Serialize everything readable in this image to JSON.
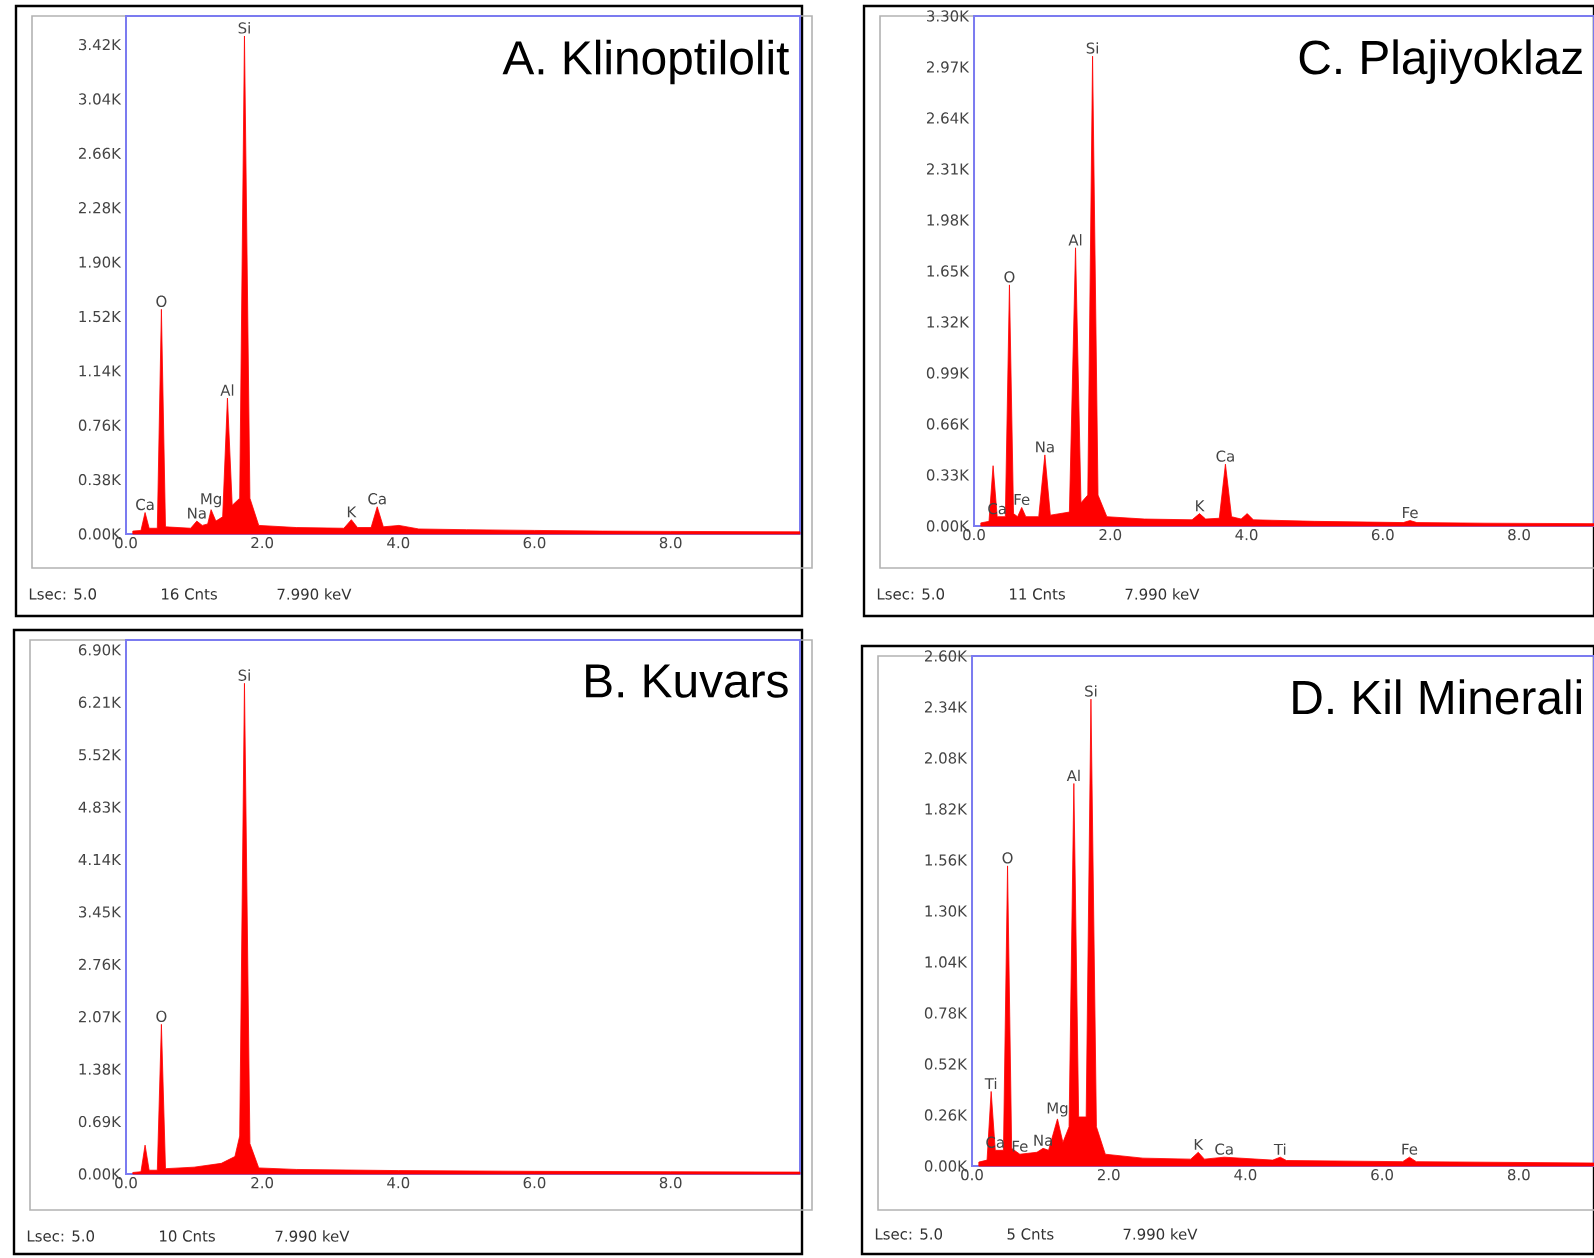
{
  "chart_data": [
    {
      "type": "area",
      "title": "A.  Klinoptilolit",
      "series": [
        {
          "color": "#ff0000",
          "x": [
            0.1,
            0.22,
            0.28,
            0.34,
            0.46,
            0.52,
            0.58,
            0.95,
            1.04,
            1.12,
            1.2,
            1.25,
            1.32,
            1.42,
            1.49,
            1.56,
            1.67,
            1.74,
            1.82,
            1.95,
            2.5,
            3.2,
            3.31,
            3.4,
            3.6,
            3.69,
            3.78,
            4.01,
            4.3,
            5.0,
            6.0,
            7.0,
            8.0,
            9.9
          ],
          "values": [
            20,
            25,
            150,
            40,
            40,
            1570,
            50,
            40,
            90,
            60,
            70,
            170,
            90,
            120,
            950,
            200,
            250,
            3480,
            250,
            60,
            45,
            40,
            100,
            45,
            45,
            190,
            50,
            60,
            35,
            30,
            25,
            20,
            18,
            15
          ]
        }
      ],
      "xlim": [
        0,
        9.9
      ],
      "xticks": [
        {
          "value": 0,
          "label": "0.0"
        },
        {
          "value": 2,
          "label": "2.0"
        },
        {
          "value": 4,
          "label": "4.0"
        },
        {
          "value": 6,
          "label": "6.0"
        },
        {
          "value": 8,
          "label": "8.0"
        }
      ],
      "ylim": [
        0,
        3620
      ],
      "yticks": [
        {
          "value": 0,
          "label": "0.00K"
        },
        {
          "value": 380,
          "label": "0.38K"
        },
        {
          "value": 760,
          "label": "0.76K"
        },
        {
          "value": 1140,
          "label": "1.14K"
        },
        {
          "value": 1520,
          "label": "1.52K"
        },
        {
          "value": 1900,
          "label": "1.90K"
        },
        {
          "value": 2280,
          "label": "2.28K"
        },
        {
          "value": 2660,
          "label": "2.66K"
        },
        {
          "value": 3040,
          "label": "3.04K"
        },
        {
          "value": 3420,
          "label": "3.42K"
        }
      ],
      "annotations": [
        {
          "text": "Si",
          "x": 1.74,
          "y": 3480
        },
        {
          "text": "O",
          "x": 0.52,
          "y": 1570
        },
        {
          "text": "Al",
          "x": 1.49,
          "y": 950
        },
        {
          "text": "Mg",
          "x": 1.25,
          "y": 170
        },
        {
          "text": "Na",
          "x": 1.04,
          "y": 90
        },
        {
          "text": "Ca",
          "x": 0.28,
          "y": 150
        },
        {
          "text": "K",
          "x": 3.31,
          "y": 100
        },
        {
          "text": "Ca",
          "x": 3.69,
          "y": 190
        },
        "Lsec: 5.0",
        "16 Cnts",
        "7.990 keV"
      ]
    },
    {
      "type": "area",
      "title": "C. Plajiyoklaz",
      "series": [
        {
          "color": "#ff0000",
          "x": [
            0.1,
            0.22,
            0.28,
            0.34,
            0.46,
            0.52,
            0.58,
            0.64,
            0.7,
            0.76,
            0.95,
            1.04,
            1.12,
            1.4,
            1.49,
            1.57,
            1.67,
            1.74,
            1.82,
            1.95,
            2.5,
            3.2,
            3.31,
            3.4,
            3.6,
            3.69,
            3.78,
            3.92,
            4.01,
            4.1,
            5.0,
            6.3,
            6.4,
            6.5,
            7.5,
            9.1
          ],
          "values": [
            20,
            30,
            390,
            60,
            60,
            1560,
            80,
            60,
            120,
            60,
            60,
            460,
            70,
            90,
            1800,
            150,
            200,
            3040,
            200,
            60,
            45,
            40,
            80,
            45,
            50,
            400,
            60,
            45,
            80,
            40,
            30,
            22,
            35,
            22,
            18,
            15
          ]
        }
      ],
      "xlim": [
        0,
        9.1
      ],
      "xticks": [
        {
          "value": 0,
          "label": "0.0"
        },
        {
          "value": 2,
          "label": "2.0"
        },
        {
          "value": 4,
          "label": "4.0"
        },
        {
          "value": 6,
          "label": "6.0"
        },
        {
          "value": 8,
          "label": "8.0"
        }
      ],
      "ylim": [
        0,
        3300
      ],
      "yticks": [
        {
          "value": 0,
          "label": "0.00K"
        },
        {
          "value": 330,
          "label": "0.33K"
        },
        {
          "value": 660,
          "label": "0.66K"
        },
        {
          "value": 990,
          "label": "0.99K"
        },
        {
          "value": 1320,
          "label": "1.32K"
        },
        {
          "value": 1650,
          "label": "1.65K"
        },
        {
          "value": 1980,
          "label": "1.98K"
        },
        {
          "value": 2310,
          "label": "2.31K"
        },
        {
          "value": 2640,
          "label": "2.64K"
        },
        {
          "value": 2970,
          "label": "2.97K"
        },
        {
          "value": 3300,
          "label": "3.30K"
        }
      ],
      "annotations": [
        {
          "text": "Si",
          "x": 1.74,
          "y": 3040
        },
        {
          "text": "O",
          "x": 0.52,
          "y": 1560
        },
        {
          "text": "Al",
          "x": 1.49,
          "y": 1800
        },
        {
          "text": "Na",
          "x": 1.04,
          "y": 460
        },
        {
          "text": "Ca",
          "x": 0.34,
          "y": 60
        },
        {
          "text": "Fe",
          "x": 0.7,
          "y": 120
        },
        {
          "text": "K",
          "x": 3.31,
          "y": 80
        },
        {
          "text": "Ca",
          "x": 3.69,
          "y": 400
        },
        {
          "text": "Fe",
          "x": 6.4,
          "y": 35
        },
        "Lsec: 5.0",
        "11 Cnts",
        "7.990 keV"
      ]
    },
    {
      "type": "area",
      "title": "B. Kuvars",
      "series": [
        {
          "color": "#ff0000",
          "x": [
            0.1,
            0.22,
            0.28,
            0.34,
            0.46,
            0.52,
            0.58,
            1.0,
            1.4,
            1.6,
            1.67,
            1.74,
            1.82,
            1.95,
            2.5,
            4.0,
            6.0,
            8.0,
            9.9
          ],
          "values": [
            20,
            30,
            380,
            50,
            50,
            1970,
            70,
            90,
            140,
            230,
            500,
            6460,
            400,
            80,
            60,
            45,
            35,
            30,
            25
          ]
        }
      ],
      "xlim": [
        0,
        9.9
      ],
      "xticks": [
        {
          "value": 0,
          "label": "0.0"
        },
        {
          "value": 2,
          "label": "2.0"
        },
        {
          "value": 4,
          "label": "4.0"
        },
        {
          "value": 6,
          "label": "6.0"
        },
        {
          "value": 8,
          "label": "8.0"
        }
      ],
      "ylim": [
        0,
        7030
      ],
      "yticks": [
        {
          "value": 0,
          "label": "0.00K"
        },
        {
          "value": 690,
          "label": "0.69K"
        },
        {
          "value": 1380,
          "label": "1.38K"
        },
        {
          "value": 2070,
          "label": "2.07K"
        },
        {
          "value": 2760,
          "label": "2.76K"
        },
        {
          "value": 3450,
          "label": "3.45K"
        },
        {
          "value": 4140,
          "label": "4.14K"
        },
        {
          "value": 4830,
          "label": "4.83K"
        },
        {
          "value": 5520,
          "label": "5.52K"
        },
        {
          "value": 6210,
          "label": "6.21K"
        },
        {
          "value": 6900,
          "label": "6.90K"
        }
      ],
      "annotations": [
        {
          "text": "Si",
          "x": 1.74,
          "y": 6460
        },
        {
          "text": "O",
          "x": 0.52,
          "y": 1970
        },
        "Lsec: 5.0",
        "10 Cnts",
        "7.990 keV"
      ]
    },
    {
      "type": "area",
      "title": "D. Kil Minerali",
      "series": [
        {
          "color": "#ff0000",
          "x": [
            0.1,
            0.22,
            0.28,
            0.34,
            0.46,
            0.52,
            0.58,
            0.7,
            0.95,
            1.04,
            1.12,
            1.25,
            1.33,
            1.42,
            1.49,
            1.56,
            1.67,
            1.74,
            1.82,
            1.95,
            2.5,
            3.2,
            3.31,
            3.4,
            3.69,
            4.4,
            4.51,
            4.6,
            6.3,
            6.4,
            6.5,
            9.1
          ],
          "values": [
            20,
            30,
            380,
            80,
            80,
            1530,
            90,
            60,
            70,
            90,
            80,
            240,
            120,
            200,
            1950,
            250,
            250,
            2380,
            200,
            60,
            40,
            35,
            70,
            35,
            45,
            30,
            45,
            28,
            22,
            45,
            22,
            15
          ]
        }
      ],
      "xlim": [
        0,
        9.1
      ],
      "xticks": [
        {
          "value": 0,
          "label": "0.0"
        },
        {
          "value": 2,
          "label": "2.0"
        },
        {
          "value": 4,
          "label": "4.0"
        },
        {
          "value": 6,
          "label": "6.0"
        },
        {
          "value": 8,
          "label": "8.0"
        }
      ],
      "ylim": [
        0,
        2600
      ],
      "yticks": [
        {
          "value": 0,
          "label": "0.00K"
        },
        {
          "value": 260,
          "label": "0.26K"
        },
        {
          "value": 520,
          "label": "0.52K"
        },
        {
          "value": 780,
          "label": "0.78K"
        },
        {
          "value": 1040,
          "label": "1.04K"
        },
        {
          "value": 1300,
          "label": "1.30K"
        },
        {
          "value": 1560,
          "label": "1.56K"
        },
        {
          "value": 1820,
          "label": "1.82K"
        },
        {
          "value": 2080,
          "label": "2.08K"
        },
        {
          "value": 2340,
          "label": "2.34K"
        },
        {
          "value": 2600,
          "label": "2.60K"
        }
      ],
      "annotations": [
        {
          "text": "Si",
          "x": 1.74,
          "y": 2380
        },
        {
          "text": "Al",
          "x": 1.49,
          "y": 1950
        },
        {
          "text": "O",
          "x": 0.52,
          "y": 1530
        },
        {
          "text": "Na",
          "x": 1.04,
          "y": 90
        },
        {
          "text": "Mg",
          "x": 1.25,
          "y": 240
        },
        {
          "text": "Ti",
          "x": 0.28,
          "y": 380
        },
        {
          "text": "Ca",
          "x": 0.34,
          "y": 80
        },
        {
          "text": "Fe",
          "x": 0.7,
          "y": 60
        },
        {
          "text": "K",
          "x": 3.31,
          "y": 70
        },
        {
          "text": "Ca",
          "x": 3.69,
          "y": 45
        },
        {
          "text": "Ti",
          "x": 4.51,
          "y": 45
        },
        {
          "text": "Fe",
          "x": 6.4,
          "y": 45
        },
        "Lsec: 5.0",
        "5 Cnts",
        "7.990 keV"
      ]
    }
  ]
}
